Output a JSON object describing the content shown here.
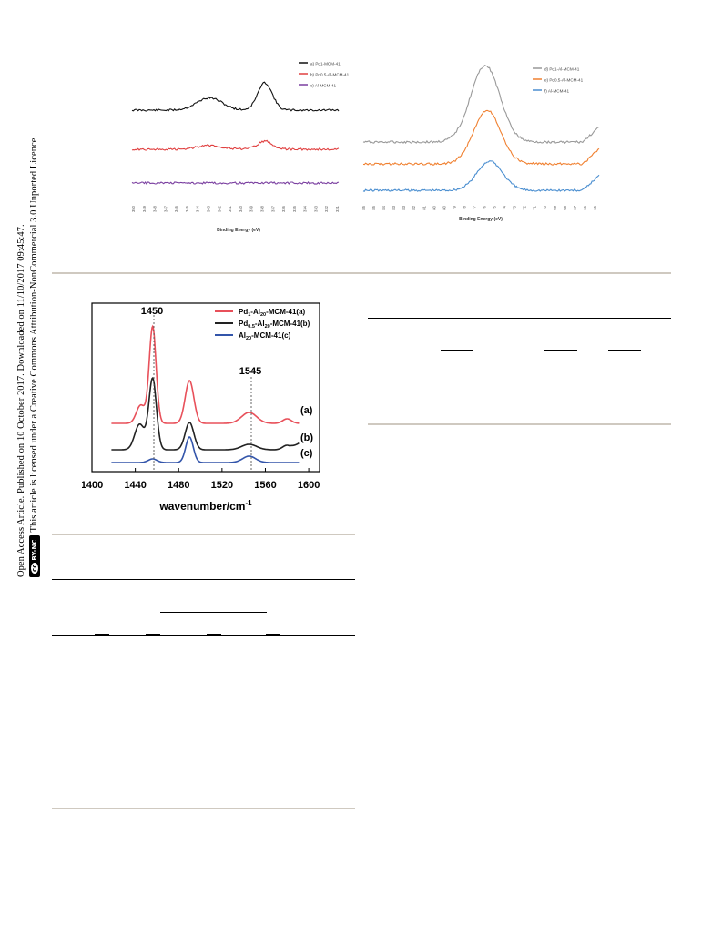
{
  "sidebar": {
    "line1": "Open Access Article. Published on 10 October 2017. Downloaded on 11/10/2017 09:45:47.",
    "line2": "This article is licensed under a Creative Commons Attribution-NonCommercial 3.0 Unported Licence.",
    "badge": "BY-NC",
    "cc": "cc"
  },
  "chart_data": [
    {
      "type": "line",
      "xlabel": "Binding Energy (eV)",
      "ylabel": "",
      "x_ticks": [
        "350",
        "349",
        "348",
        "347",
        "346",
        "345",
        "344",
        "343",
        "342",
        "341",
        "340",
        "339",
        "338",
        "337",
        "336",
        "335",
        "334",
        "333",
        "332",
        "331"
      ],
      "series": [
        {
          "name": "a) Pd1-MCM-41",
          "color": "#111111",
          "peaks": [
            {
              "x": 342.5,
              "height": 0.45
            },
            {
              "x": 337.5,
              "height": 1.0
            }
          ]
        },
        {
          "name": "b) Pd0.5-Al-MCM-41",
          "color": "#e04040",
          "peaks": [
            {
              "x": 342.5,
              "height": 0.25
            },
            {
              "x": 337.5,
              "height": 0.55
            }
          ]
        },
        {
          "name": "c) Al-MCM-41",
          "color": "#7a3fa0",
          "peaks": []
        }
      ]
    },
    {
      "type": "line",
      "xlabel": "Binding Energy (eV)",
      "ylabel": "",
      "x_ticks": [
        "85",
        "85",
        "84",
        "83",
        "83",
        "82",
        "81",
        "80",
        "80",
        "79",
        "78",
        "77",
        "76",
        "75",
        "74",
        "73",
        "72",
        "71",
        "70",
        "69",
        "68",
        "67",
        "66",
        "65"
      ],
      "series": [
        {
          "name": "d) Pd1-Al-MCM-41",
          "color": "#999999",
          "peak_x": 75,
          "height": 1.0
        },
        {
          "name": "e) Pd0.5-Al-MCM-41",
          "color": "#f08030",
          "peak_x": 75,
          "height": 0.65
        },
        {
          "name": "f) Al-MCM-41",
          "color": "#4a8ed0",
          "peak_x": 74.5,
          "height": 0.4
        }
      ]
    },
    {
      "type": "line",
      "xlabel": "wavenumber/cm-1",
      "x_ticks": [
        "1400",
        "1440",
        "1480",
        "1520",
        "1560",
        "1600"
      ],
      "xlim": [
        1400,
        1610
      ],
      "annotations": [
        "1450",
        "1545"
      ],
      "series": [
        {
          "name": "Pd1-Al20-MCM-41(a)",
          "tag": "(a)",
          "color": "#e8505a"
        },
        {
          "name": "Pd0.5-Al20-MCM-41(b)",
          "tag": "(b)",
          "color": "#222222"
        },
        {
          "name": "Al20-MCM-41(c)",
          "tag": "(c)",
          "color": "#3355aa"
        }
      ]
    }
  ],
  "ir_legend": {
    "a": {
      "pre": "Pd",
      "s1": "1",
      "mid": "-Al",
      "s2": "20",
      "post": "-MCM-41(a)"
    },
    "b": {
      "pre": "Pd",
      "s1": "0.5",
      "mid": "-Al",
      "s2": "20",
      "post": "-MCM-41(b)"
    },
    "c": {
      "pre": "Al",
      "s1": "20",
      "post": "-MCM-41(c)"
    }
  },
  "ir_xlabel": {
    "main": "wavenumber/cm",
    "sup": "-1"
  },
  "colors": {
    "rule": "#cfc9c0"
  }
}
